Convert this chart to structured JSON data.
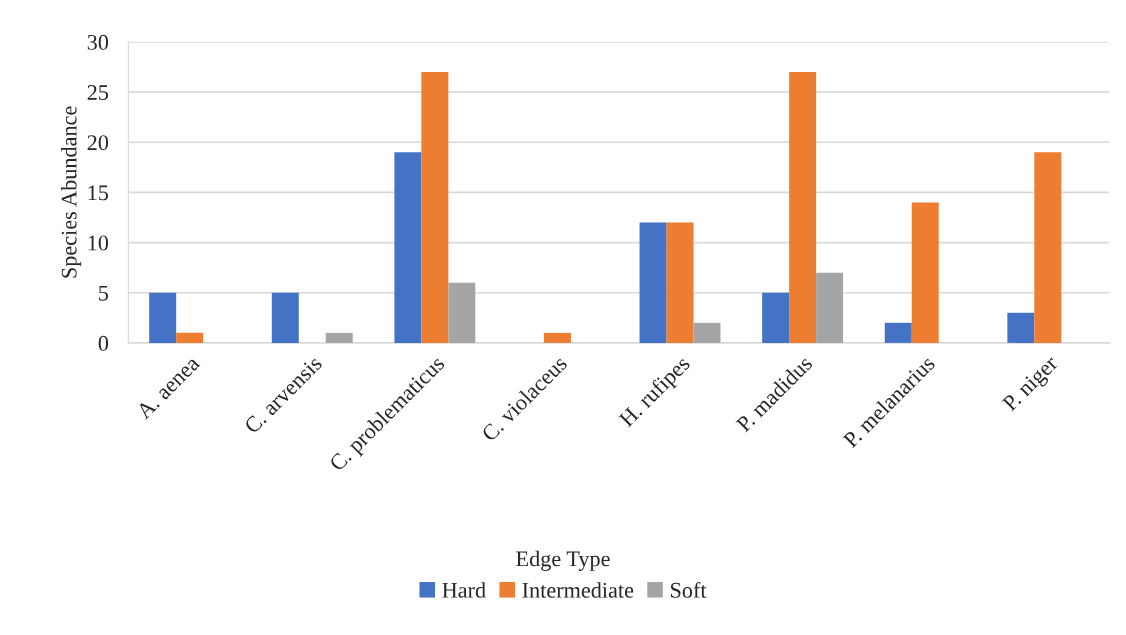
{
  "chart_data": {
    "type": "bar",
    "categories": [
      "A. aenea",
      "C. arvensis",
      "C. problematicus",
      "C. violaceus",
      "H. rufipes",
      "P. madidus",
      "P. melanarius",
      "P. niger"
    ],
    "series": [
      {
        "name": "Hard",
        "color": "#4472c4",
        "values": [
          5,
          5,
          19,
          0,
          12,
          5,
          2,
          3
        ]
      },
      {
        "name": "Intermediate",
        "color": "#ed7d31",
        "values": [
          1,
          0,
          27,
          1,
          12,
          27,
          14,
          19
        ]
      },
      {
        "name": "Soft",
        "color": "#a5a5a5",
        "values": [
          0,
          1,
          6,
          0,
          2,
          7,
          0,
          0
        ]
      }
    ],
    "ylabel": "Species Abundance",
    "legend_title": "Edge Type",
    "ylim": [
      0,
      30
    ],
    "yticks": [
      0,
      5,
      10,
      15,
      20,
      25,
      30
    ],
    "grid": "y",
    "legend": "bottom"
  }
}
